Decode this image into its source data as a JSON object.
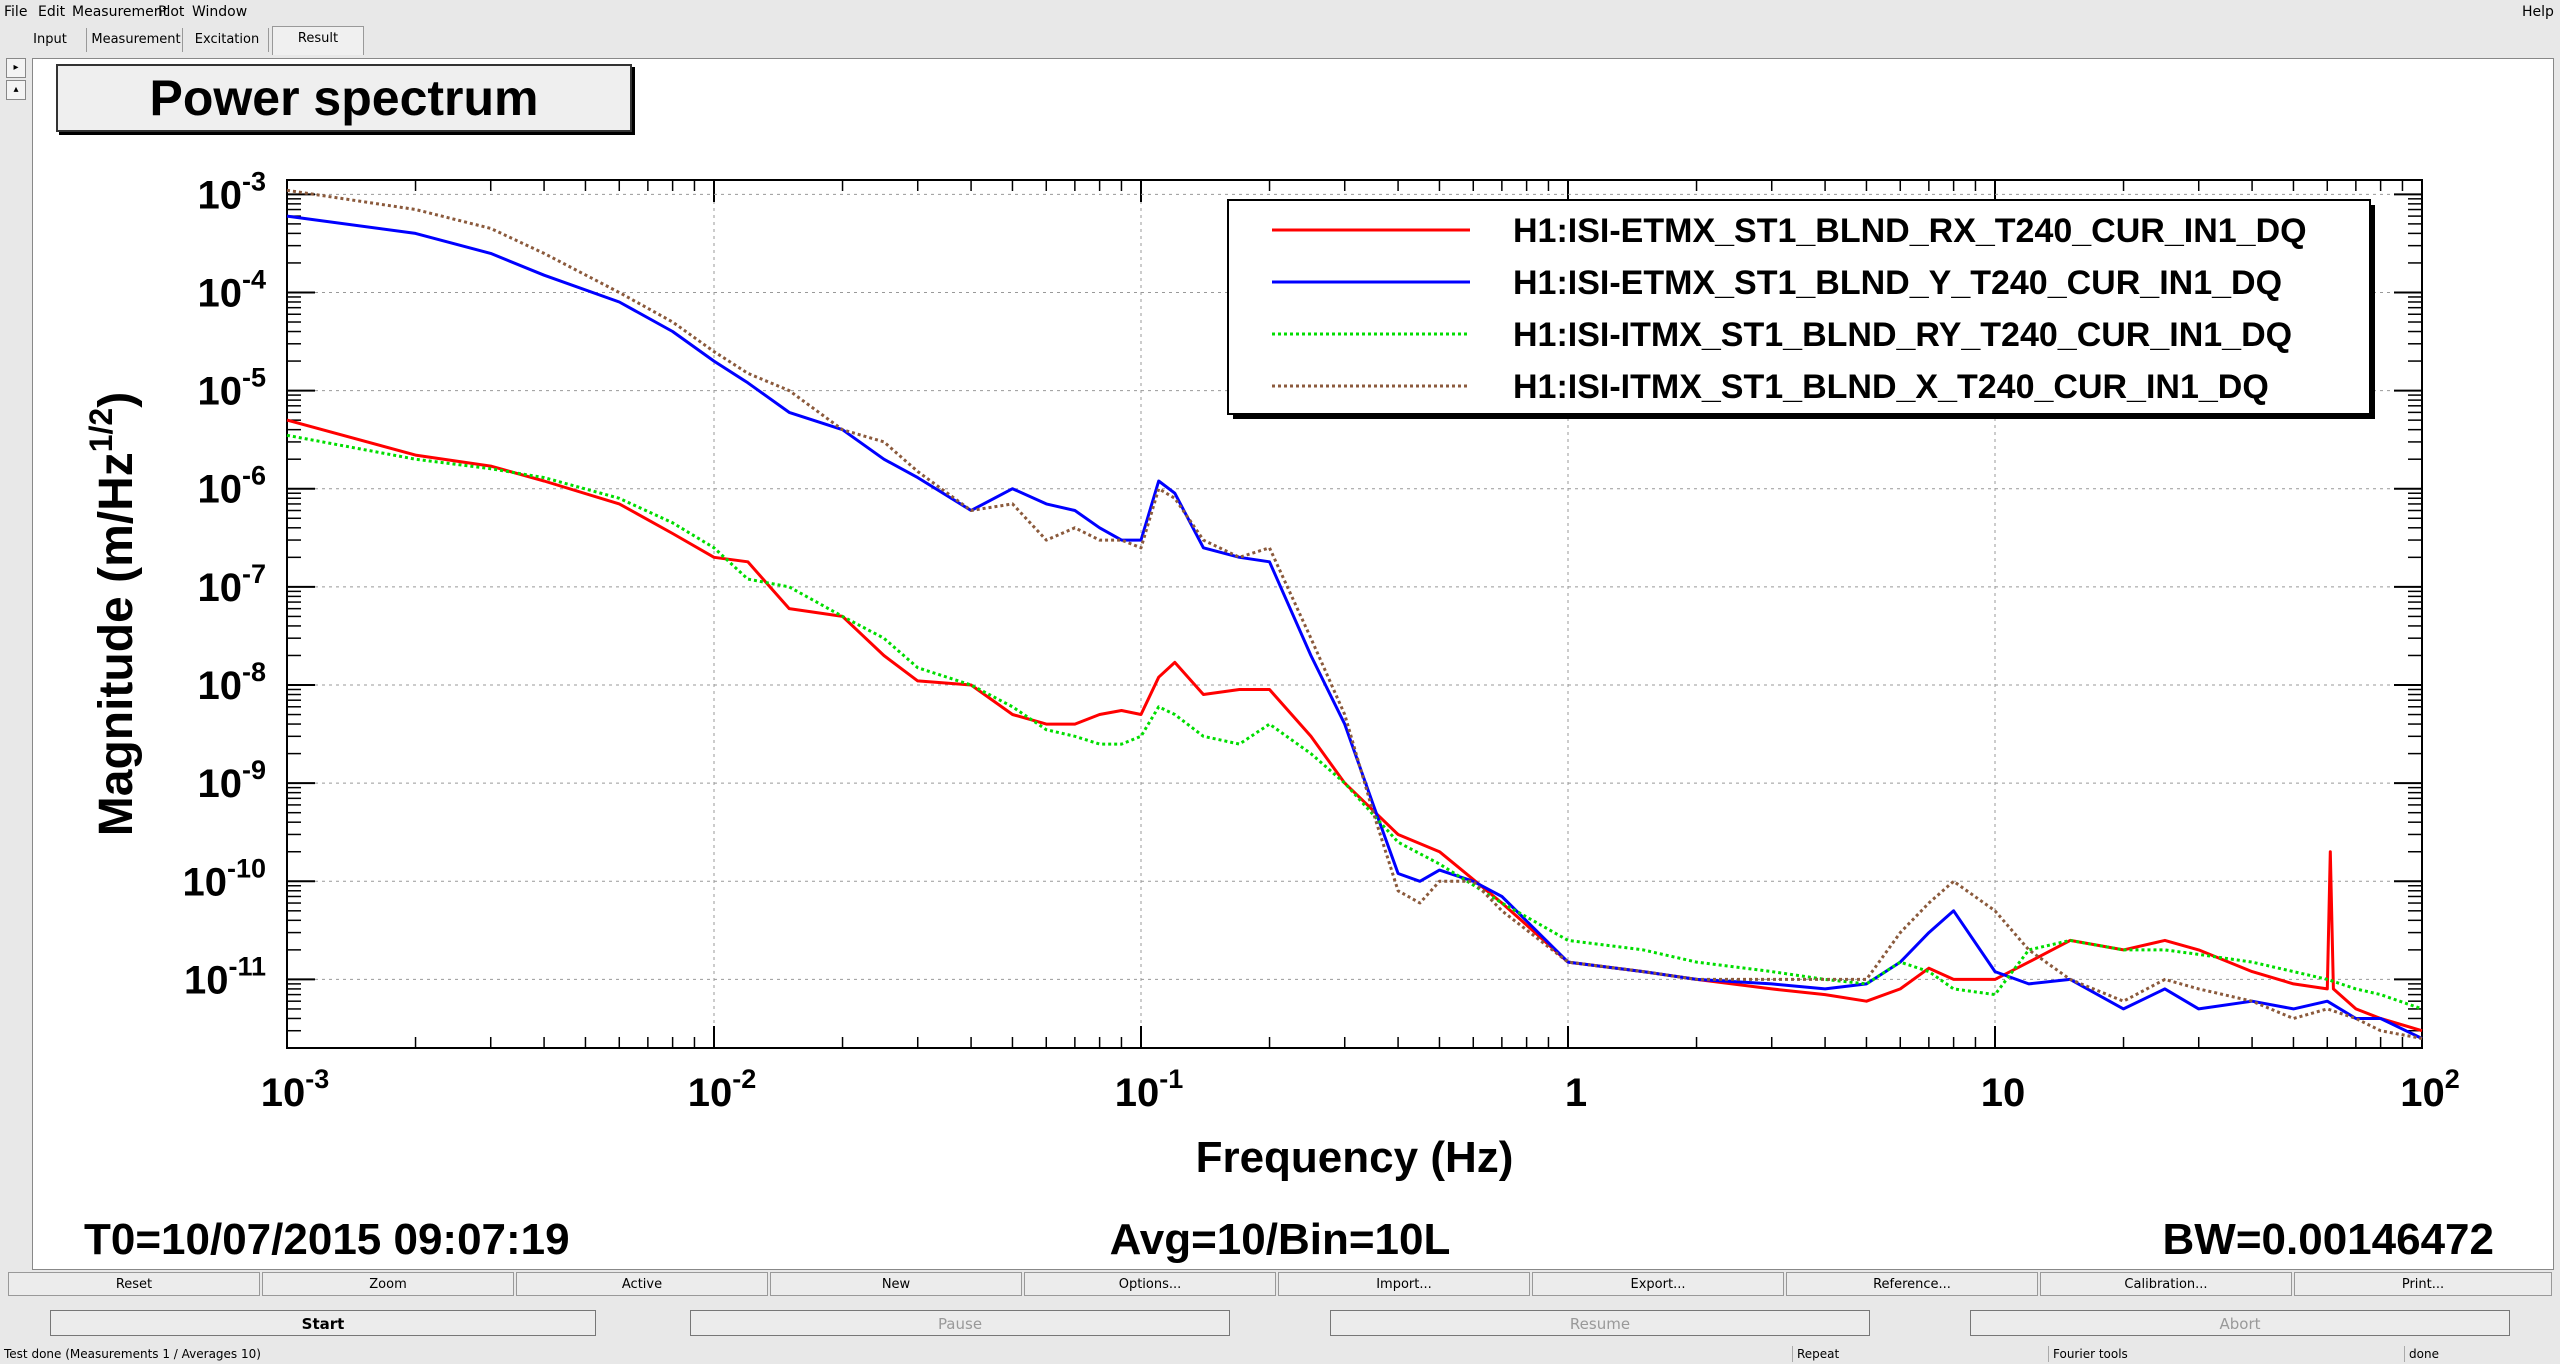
{
  "menu": {
    "file": "File",
    "edit": "Edit",
    "measurement": "Measurement",
    "plot": "Plot",
    "window": "Window",
    "help": "Help"
  },
  "tabs": [
    "Input",
    "Measurement",
    "Excitation",
    "Result"
  ],
  "active_tab": "Result",
  "plot": {
    "title": "Power spectrum",
    "info_left": "T0=10/07/2015 09:07:19",
    "info_center": "Avg=10/Bin=10L",
    "info_right": "BW=0.00146472"
  },
  "chart_data": {
    "type": "line",
    "title": "Power spectrum",
    "xlabel": "Frequency (Hz)",
    "ylabel": "Magnitude (m/Hz^1/2)",
    "xscale": "log",
    "yscale": "log",
    "xlim": [
      0.001,
      100
    ],
    "ylim": [
      2e-12,
      0.0014
    ],
    "x_ticks": [
      "10^-3",
      "10^-2",
      "10^-1",
      "1",
      "10",
      "10^2"
    ],
    "y_ticks": [
      "10^-3",
      "10^-4",
      "10^-5",
      "10^-6",
      "10^-7",
      "10^-8",
      "10^-9",
      "10^-10",
      "10^-11"
    ],
    "grid": true,
    "legend_position": "top-right",
    "series": [
      {
        "name": "H1:ISI-ETMX_ST1_BLND_RX_T240_CUR_IN1_DQ",
        "color": "#ff0000",
        "style": "solid",
        "x": [
          0.001,
          0.002,
          0.003,
          0.004,
          0.006,
          0.008,
          0.01,
          0.012,
          0.015,
          0.02,
          0.025,
          0.03,
          0.04,
          0.05,
          0.06,
          0.07,
          0.08,
          0.09,
          0.1,
          0.11,
          0.12,
          0.14,
          0.17,
          0.2,
          0.25,
          0.3,
          0.4,
          0.5,
          0.7,
          1,
          1.5,
          2,
          3,
          4,
          5,
          6,
          7,
          8,
          10,
          12,
          15,
          20,
          25,
          30,
          40,
          50,
          60,
          61,
          62,
          70,
          80,
          100
        ],
        "y": [
          5e-06,
          2.2e-06,
          1.7e-06,
          1.2e-06,
          7e-07,
          3.5e-07,
          2e-07,
          1.8e-07,
          6e-08,
          5e-08,
          2e-08,
          1.1e-08,
          1e-08,
          5e-09,
          4e-09,
          4e-09,
          5e-09,
          5.5e-09,
          5e-09,
          1.2e-08,
          1.7e-08,
          8e-09,
          9e-09,
          9e-09,
          3e-09,
          1e-09,
          3e-10,
          2e-10,
          6e-11,
          1.5e-11,
          1.2e-11,
          1e-11,
          8e-12,
          7e-12,
          6e-12,
          8e-12,
          1.3e-11,
          1e-11,
          1e-11,
          1.5e-11,
          2.5e-11,
          2e-11,
          2.5e-11,
          2e-11,
          1.2e-11,
          9e-12,
          8e-12,
          2e-10,
          8e-12,
          5e-12,
          4e-12,
          3e-12
        ]
      },
      {
        "name": "H1:ISI-ETMX_ST1_BLND_Y_T240_CUR_IN1_DQ",
        "color": "#0000ff",
        "style": "solid",
        "x": [
          0.001,
          0.002,
          0.003,
          0.004,
          0.006,
          0.008,
          0.01,
          0.012,
          0.015,
          0.02,
          0.025,
          0.03,
          0.04,
          0.05,
          0.06,
          0.07,
          0.08,
          0.09,
          0.1,
          0.11,
          0.12,
          0.14,
          0.17,
          0.2,
          0.25,
          0.3,
          0.35,
          0.4,
          0.45,
          0.5,
          0.6,
          0.7,
          1,
          1.5,
          2,
          3,
          4,
          5,
          6,
          7,
          8,
          10,
          12,
          15,
          20,
          25,
          30,
          40,
          50,
          60,
          70,
          80,
          100
        ],
        "y": [
          0.0006,
          0.0004,
          0.00025,
          0.00015,
          8e-05,
          4e-05,
          2e-05,
          1.2e-05,
          6e-06,
          4e-06,
          2e-06,
          1.3e-06,
          6e-07,
          1e-06,
          7e-07,
          6e-07,
          4e-07,
          3e-07,
          3e-07,
          1.2e-06,
          9e-07,
          2.5e-07,
          2e-07,
          1.8e-07,
          2e-08,
          4e-09,
          6e-10,
          1.2e-10,
          1e-10,
          1.3e-10,
          1e-10,
          7e-11,
          1.5e-11,
          1.2e-11,
          1e-11,
          9e-12,
          8e-12,
          9e-12,
          1.5e-11,
          3e-11,
          5e-11,
          1.2e-11,
          9e-12,
          1e-11,
          5e-12,
          8e-12,
          5e-12,
          6e-12,
          5e-12,
          6e-12,
          4e-12,
          4e-12,
          2.5e-12
        ]
      },
      {
        "name": "H1:ISI-ITMX_ST1_BLND_RY_T240_CUR_IN1_DQ",
        "color": "#00dd00",
        "style": "dotted",
        "x": [
          0.001,
          0.002,
          0.003,
          0.004,
          0.006,
          0.008,
          0.01,
          0.012,
          0.015,
          0.02,
          0.025,
          0.03,
          0.04,
          0.05,
          0.06,
          0.07,
          0.08,
          0.09,
          0.1,
          0.11,
          0.12,
          0.14,
          0.17,
          0.2,
          0.25,
          0.3,
          0.4,
          0.5,
          0.7,
          1,
          1.5,
          2,
          3,
          4,
          5,
          6,
          7,
          8,
          10,
          12,
          15,
          20,
          25,
          30,
          40,
          50,
          60,
          70,
          80,
          100
        ],
        "y": [
          3.5e-06,
          2e-06,
          1.6e-06,
          1.3e-06,
          8e-07,
          4.5e-07,
          2.5e-07,
          1.2e-07,
          1e-07,
          5e-08,
          3e-08,
          1.5e-08,
          1e-08,
          6e-09,
          3.5e-09,
          3e-09,
          2.5e-09,
          2.5e-09,
          3e-09,
          6e-09,
          5e-09,
          3e-09,
          2.5e-09,
          4e-09,
          2e-09,
          1e-09,
          2.5e-10,
          1.5e-10,
          6e-11,
          2.5e-11,
          2e-11,
          1.5e-11,
          1.2e-11,
          1e-11,
          9e-12,
          1.5e-11,
          1.2e-11,
          8e-12,
          7e-12,
          2e-11,
          2.5e-11,
          2e-11,
          2e-11,
          1.8e-11,
          1.5e-11,
          1.2e-11,
          1e-11,
          8e-12,
          7e-12,
          5e-12
        ]
      },
      {
        "name": "H1:ISI-ITMX_ST1_BLND_X_T240_CUR_IN1_DQ",
        "color": "#8b5a3c",
        "style": "dotted",
        "x": [
          0.001,
          0.002,
          0.003,
          0.004,
          0.006,
          0.008,
          0.01,
          0.012,
          0.015,
          0.02,
          0.025,
          0.03,
          0.04,
          0.05,
          0.06,
          0.07,
          0.08,
          0.09,
          0.1,
          0.11,
          0.12,
          0.14,
          0.17,
          0.2,
          0.25,
          0.3,
          0.35,
          0.4,
          0.45,
          0.5,
          0.6,
          0.7,
          1,
          1.5,
          2,
          3,
          4,
          5,
          6,
          7,
          8,
          10,
          12,
          15,
          20,
          25,
          30,
          40,
          50,
          60,
          70,
          80,
          100
        ],
        "y": [
          0.0011,
          0.0007,
          0.00045,
          0.00025,
          0.0001,
          5e-05,
          2.5e-05,
          1.5e-05,
          1e-05,
          4e-06,
          3e-06,
          1.5e-06,
          6e-07,
          7e-07,
          3e-07,
          4e-07,
          3e-07,
          3e-07,
          2.5e-07,
          1e-06,
          8e-07,
          3e-07,
          2e-07,
          2.5e-07,
          3e-08,
          5e-09,
          5e-10,
          8e-11,
          6e-11,
          1e-10,
          1e-10,
          5e-11,
          1.5e-11,
          1.2e-11,
          1e-11,
          1e-11,
          1e-11,
          1e-11,
          3e-11,
          6e-11,
          1e-10,
          5e-11,
          2e-11,
          1e-11,
          6e-12,
          1e-11,
          8e-12,
          6e-12,
          4e-12,
          5e-12,
          4e-12,
          3e-12,
          2.5e-12
        ]
      }
    ]
  },
  "buttons": [
    "Reset",
    "Zoom",
    "Active",
    "New",
    "Options...",
    "Import...",
    "Export...",
    "Reference...",
    "Calibration...",
    "Print..."
  ],
  "controls": {
    "start": "Start",
    "pause": "Pause",
    "resume": "Resume",
    "abort": "Abort"
  },
  "status": {
    "message": "Test done (Measurements 1 / Averages 10)",
    "mode": "Repeat",
    "tool": "Fourier tools",
    "state": "done"
  }
}
